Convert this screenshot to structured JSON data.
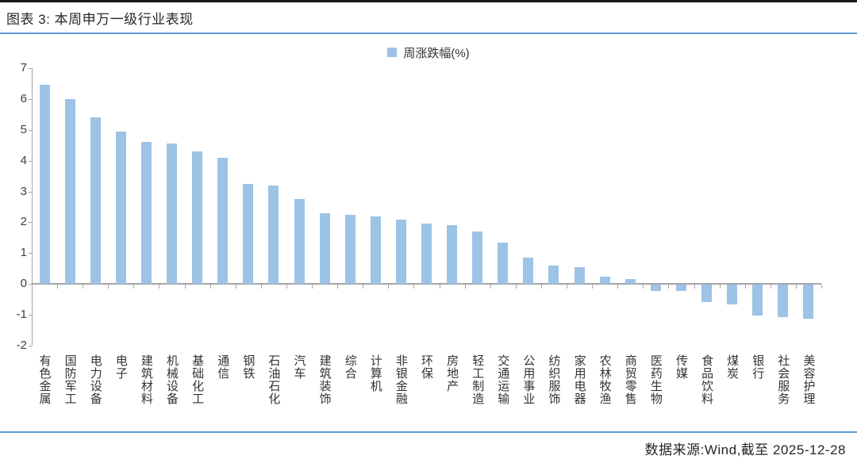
{
  "header": {
    "title": "图表 3: 本周申万一级行业表现"
  },
  "legend": {
    "label": "周涨跌幅(%)"
  },
  "footer": {
    "source": "数据来源:Wind,截至 2025-12-28"
  },
  "colors": {
    "bar": "#9DC3E6",
    "accent_line": "#5B9BD5",
    "axis": "#A6A6A6",
    "top_border": "#1a1a1a"
  },
  "chart_data": {
    "type": "bar",
    "title": "本周申万一级行业表现",
    "legend": [
      "周涨跌幅(%)"
    ],
    "legend_position": "top-center",
    "grid": false,
    "xlabel": "",
    "ylabel": "",
    "ylim": [
      -2,
      7
    ],
    "y_ticks": [
      -2,
      -1,
      0,
      1,
      2,
      3,
      4,
      5,
      6,
      7
    ],
    "categories": [
      "有色金属",
      "国防军工",
      "电力设备",
      "电子",
      "建筑材料",
      "机械设备",
      "基础化工",
      "通信",
      "钢铁",
      "石油石化",
      "汽车",
      "建筑装饰",
      "综合",
      "计算机",
      "非银金融",
      "环保",
      "房地产",
      "轻工制造",
      "交通运输",
      "公用事业",
      "纺织服饰",
      "家用电器",
      "农林牧渔",
      "商贸零售",
      "医药生物",
      "传媒",
      "食品饮料",
      "煤炭",
      "银行",
      "社会服务",
      "美容护理"
    ],
    "values": [
      6.45,
      6.0,
      5.4,
      4.95,
      4.6,
      4.55,
      4.3,
      4.1,
      3.25,
      3.2,
      2.75,
      2.3,
      2.25,
      2.2,
      2.1,
      1.95,
      1.9,
      1.7,
      1.35,
      0.85,
      0.6,
      0.55,
      0.25,
      0.15,
      -0.2,
      -0.2,
      -0.55,
      -0.65,
      -1.0,
      -1.05,
      -1.1
    ]
  }
}
